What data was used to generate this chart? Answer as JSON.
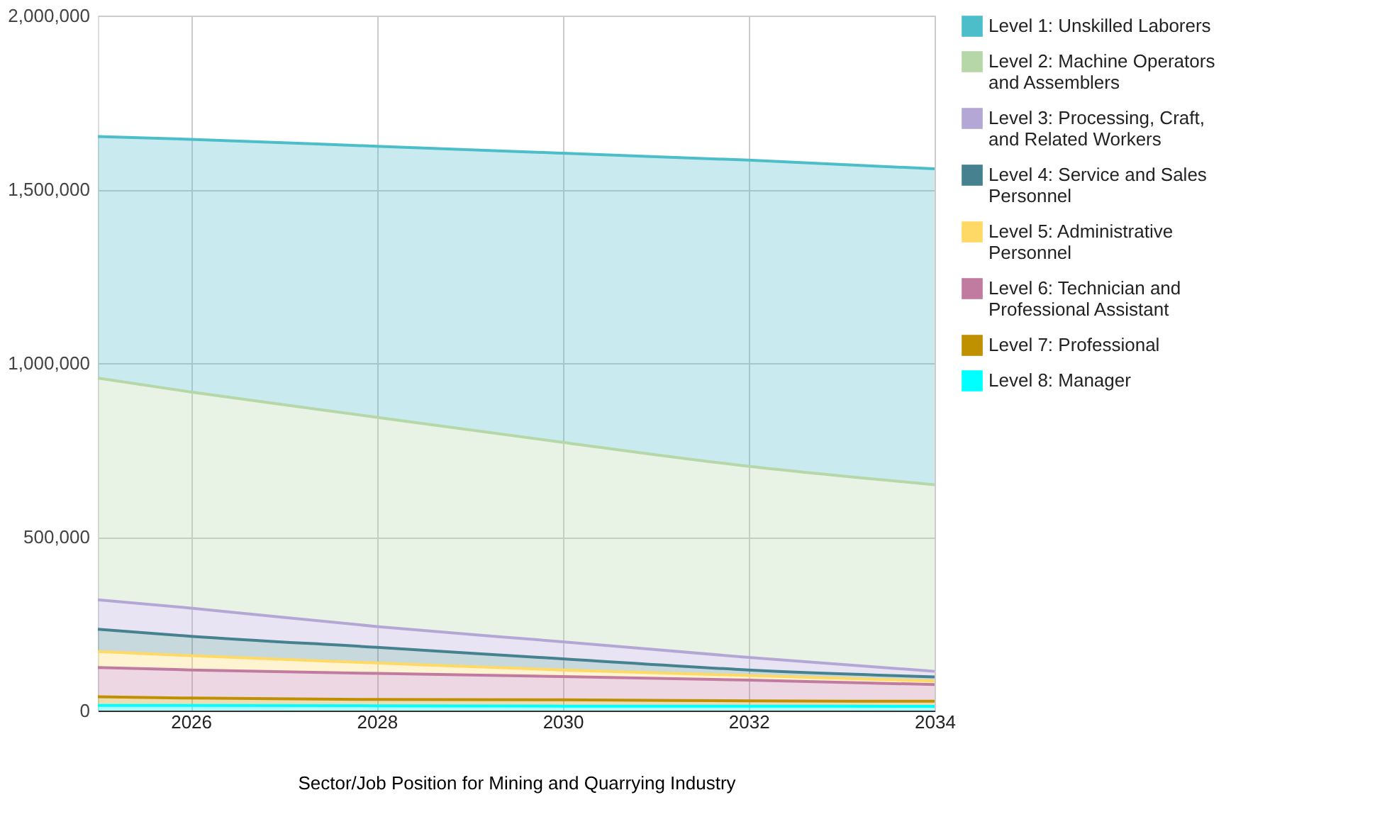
{
  "chart_data": {
    "type": "area",
    "stacked": true,
    "xlabel": "Sector/Job Position for Mining and Quarrying Industry",
    "x": [
      2025,
      2026,
      2028,
      2030,
      2032,
      2034
    ],
    "xlim": [
      2025,
      2034
    ],
    "xticks": [
      2026,
      2028,
      2030,
      2032,
      2034
    ],
    "ylim": [
      0,
      2000000
    ],
    "yticks": [
      {
        "value": 0,
        "label": "0"
      },
      {
        "value": 500000,
        "label": "500,000"
      },
      {
        "value": 1000000,
        "label": "1,000,000"
      },
      {
        "value": 1500000,
        "label": "1,500,000"
      },
      {
        "value": 2000000,
        "label": "2,000,000"
      }
    ],
    "grid": true,
    "legend": "right",
    "series": [
      {
        "name": "Level 8: Manager",
        "color": "#00ffff",
        "values": [
          15000,
          15000,
          14000,
          13000,
          13000,
          12000
        ]
      },
      {
        "name": "Level 7: Professional",
        "color": "#bf9000",
        "values": [
          25000,
          21000,
          18000,
          18000,
          15000,
          15000
        ]
      },
      {
        "name": "Level 6: Technician and Professional Assistant",
        "color": "#c27ba0",
        "values": [
          84000,
          81000,
          75000,
          67000,
          60000,
          48000
        ]
      },
      {
        "name": "Level 5: Administrative Personnel",
        "color": "#ffd966",
        "values": [
          46000,
          41000,
          30000,
          19000,
          13000,
          10000
        ]
      },
      {
        "name": "Level 4: Service and Sales Personnel",
        "color": "#45818e",
        "values": [
          64000,
          56000,
          45000,
          32000,
          16000,
          12000
        ]
      },
      {
        "name": "Level 3: Processing, Craft, and Related Workers",
        "color": "#b4a7d6",
        "values": [
          85000,
          81000,
          60000,
          49000,
          36000,
          16000
        ]
      },
      {
        "name": "Level 2: Machine Operators and Assemblers",
        "color": "#b6d7a8",
        "values": [
          638000,
          622000,
          602000,
          574000,
          550000,
          537000
        ]
      },
      {
        "name": "Level 1: Unskilled Laborers",
        "color": "#4cbec9",
        "values": [
          695000,
          727000,
          780000,
          832000,
          881000,
          909000
        ]
      }
    ]
  }
}
